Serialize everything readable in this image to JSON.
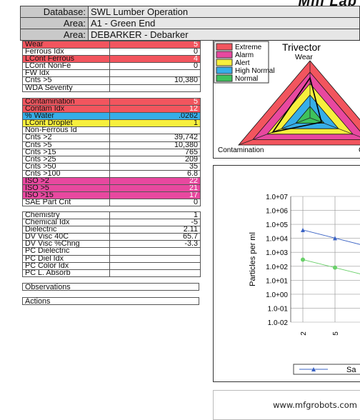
{
  "header": {
    "title_fragment": "Mill Lab",
    "rows": [
      {
        "label": "Database:",
        "value": "SWL Lumber Operation"
      },
      {
        "label": "Area:",
        "value": "A1 - Green End"
      },
      {
        "label": "Area:",
        "value": "DEBARKER - Debarker"
      }
    ]
  },
  "colors": {
    "red": "#f2555e",
    "pink": "#e8489f",
    "yellow": "#f7ef3d",
    "blue": "#36aee8",
    "green": "#3ec25c"
  },
  "wear": [
    {
      "name": "Wear",
      "value": "5",
      "status": "red"
    },
    {
      "name": "Ferrous Idx",
      "value": "0"
    },
    {
      "name": "LCont Ferrous",
      "value": "4",
      "status": "red"
    },
    {
      "name": "LCont NonFe",
      "value": "0"
    },
    {
      "name": "FW Idx",
      "value": ""
    },
    {
      "name": "Cnts >5",
      "value": "10,380"
    },
    {
      "name": "WDA Severity",
      "value": ""
    }
  ],
  "contamination": [
    {
      "name": "Contamination",
      "value": "5",
      "status": "red"
    },
    {
      "name": "Contam Idx",
      "value": "12",
      "status": "red"
    },
    {
      "name": "% Water",
      "value": ".0262",
      "status": "blue"
    },
    {
      "name": "LCont Droplet",
      "value": "1",
      "status": "yellow"
    },
    {
      "name": "Non-Ferrous Id",
      "value": ""
    },
    {
      "name": "Cnts >2",
      "value": "39,742"
    },
    {
      "name": "Cnts >5",
      "value": "10,380"
    },
    {
      "name": "Cnts >15",
      "value": "765"
    },
    {
      "name": "Cnts >25",
      "value": "209"
    },
    {
      "name": "Cnts >50",
      "value": "35"
    },
    {
      "name": "Cnts >100",
      "value": "6.8"
    },
    {
      "name": "ISO >2",
      "value": "22",
      "status": "pink"
    },
    {
      "name": "ISO >5",
      "value": "21",
      "status": "pink"
    },
    {
      "name": "ISO >15",
      "value": "17",
      "status": "pink"
    },
    {
      "name": "SAE Part Cnt",
      "value": "0"
    }
  ],
  "chemistry": [
    {
      "name": "Chemistry",
      "value": "1"
    },
    {
      "name": "Chemical Idx",
      "value": "-5"
    },
    {
      "name": "Dielectric",
      "value": "2.11"
    },
    {
      "name": "DV Visc 40C",
      "value": "65.7"
    },
    {
      "name": "DV Visc %Chng",
      "value": "-3.3"
    },
    {
      "name": "PC Dielectric",
      "value": ""
    },
    {
      "name": "PC Diel Idx",
      "value": ""
    },
    {
      "name": "PC Color Idx",
      "value": ""
    },
    {
      "name": "PC L. Absorb",
      "value": ""
    }
  ],
  "observations_label": "Observations",
  "actions_label": "Actions",
  "trivector": {
    "title": "Trivector",
    "legend": [
      {
        "label": "Extreme",
        "color": "#f2555e"
      },
      {
        "label": "Alarm",
        "color": "#e8489f"
      },
      {
        "label": "Alert",
        "color": "#f7ef3d"
      },
      {
        "label": "High Normal",
        "color": "#36aee8"
      },
      {
        "label": "Normal",
        "color": "#3ec25c"
      }
    ],
    "axes": [
      "Wear",
      "Contamination",
      "C"
    ]
  },
  "chart_data": {
    "type": "line",
    "ylabel": "Particles per ml",
    "yscale": "log",
    "ylim": [
      0.01,
      10000000
    ],
    "yticks": [
      "1.0+07",
      "1.0+06",
      "1.0+05",
      "1.0+04",
      "1.0+03",
      "1.0+02",
      "1.0+01",
      "1.0+00",
      "1.0-01",
      "1.0-02"
    ],
    "xticks": [
      "2",
      "5"
    ],
    "grid": true,
    "legend_label": "Sa",
    "series": [
      {
        "x": [
          2,
          5
        ],
        "values": [
          39742,
          10380
        ],
        "color": "#3b63c4",
        "marker": "triangle"
      },
      {
        "x": [
          2,
          5
        ],
        "values": [
          300,
          80
        ],
        "color": "#6ad06a",
        "marker": "circle"
      }
    ]
  },
  "watermark": "www.mfgrobots.com"
}
